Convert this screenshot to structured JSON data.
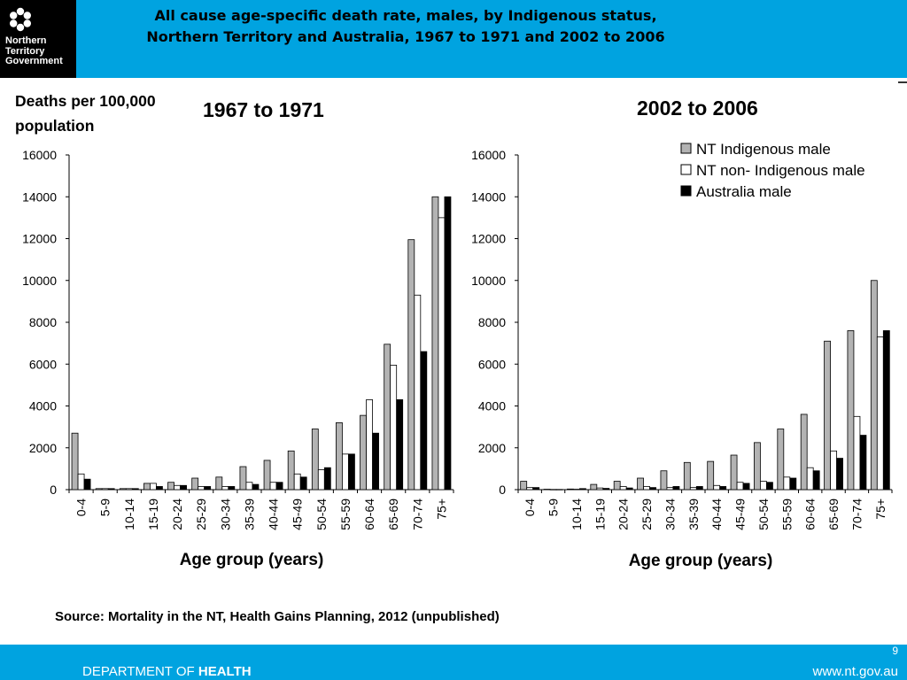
{
  "header": {
    "logo": {
      "icon": "nt-government-flower-logo",
      "lines": [
        "Northern",
        "Territory",
        "Government"
      ]
    },
    "title_line1": "All cause age-specific death rate, males, by Indigenous status,",
    "title_line2": "Northern Territory and Australia, 1967 to 1971 and 2002 to 2006"
  },
  "ylabel": "Deaths per 100,000 population",
  "chart_data": [
    {
      "type": "bar",
      "title": "1967 to 1971",
      "xlabel": "Age group (years)",
      "ylabel": "Deaths per 100,000 population",
      "ylim": [
        0,
        16000
      ],
      "yticks": [
        0,
        2000,
        4000,
        6000,
        8000,
        10000,
        12000,
        14000,
        16000
      ],
      "categories": [
        "0-4",
        "5-9",
        "10-14",
        "15-19",
        "20-24",
        "25-29",
        "30-34",
        "35-39",
        "40-44",
        "45-49",
        "50-54",
        "55-59",
        "60-64",
        "65-69",
        "70-74",
        "75+"
      ],
      "series": [
        {
          "name": "NT Indigenous male",
          "color": "#b3b3b3",
          "values": [
            2700,
            50,
            50,
            300,
            350,
            550,
            600,
            1100,
            1400,
            1850,
            2900,
            3200,
            3550,
            6950,
            11950,
            14000
          ]
        },
        {
          "name": "NT non- Indigenous male",
          "color": "#ffffff",
          "values": [
            750,
            50,
            50,
            300,
            200,
            150,
            150,
            350,
            350,
            750,
            950,
            1700,
            4300,
            5950,
            9300,
            13000
          ]
        },
        {
          "name": "Australia male",
          "color": "#000000",
          "values": [
            500,
            50,
            50,
            150,
            200,
            150,
            150,
            250,
            350,
            600,
            1050,
            1700,
            2700,
            4300,
            6600,
            14000
          ]
        }
      ],
      "grid": false,
      "legend": "none"
    },
    {
      "type": "bar",
      "title": "2002 to 2006",
      "xlabel": "Age group (years)",
      "ylim": [
        0,
        16000
      ],
      "yticks": [
        0,
        2000,
        4000,
        6000,
        8000,
        10000,
        12000,
        14000,
        16000
      ],
      "categories": [
        "0-4",
        "5-9",
        "10-14",
        "15-19",
        "20-24",
        "25-29",
        "30-34",
        "35-39",
        "40-44",
        "45-49",
        "50-54",
        "55-59",
        "60-64",
        "65-69",
        "70-74",
        "75+"
      ],
      "series": [
        {
          "name": "NT Indigenous male",
          "color": "#b3b3b3",
          "values": [
            400,
            20,
            30,
            250,
            400,
            550,
            900,
            1300,
            1350,
            1650,
            2250,
            2900,
            3600,
            7100,
            7600,
            10000
          ]
        },
        {
          "name": "NT non- Indigenous male",
          "color": "#ffffff",
          "values": [
            100,
            10,
            20,
            80,
            150,
            150,
            100,
            100,
            200,
            350,
            400,
            600,
            1050,
            1850,
            3500,
            7300
          ]
        },
        {
          "name": "Australia male",
          "color": "#000000",
          "values": [
            100,
            10,
            50,
            60,
            80,
            100,
            150,
            150,
            150,
            300,
            350,
            550,
            900,
            1500,
            2600,
            7600
          ]
        }
      ],
      "grid": false,
      "legend": "top-right"
    }
  ],
  "source": "Source: Mortality in the NT, Health Gains Planning, 2012 (unpublished)",
  "footer": {
    "page_number": "9",
    "dept_prefix": "DEPARTMENT OF ",
    "dept_name": "HEALTH",
    "website": "www.nt.gov.au"
  }
}
